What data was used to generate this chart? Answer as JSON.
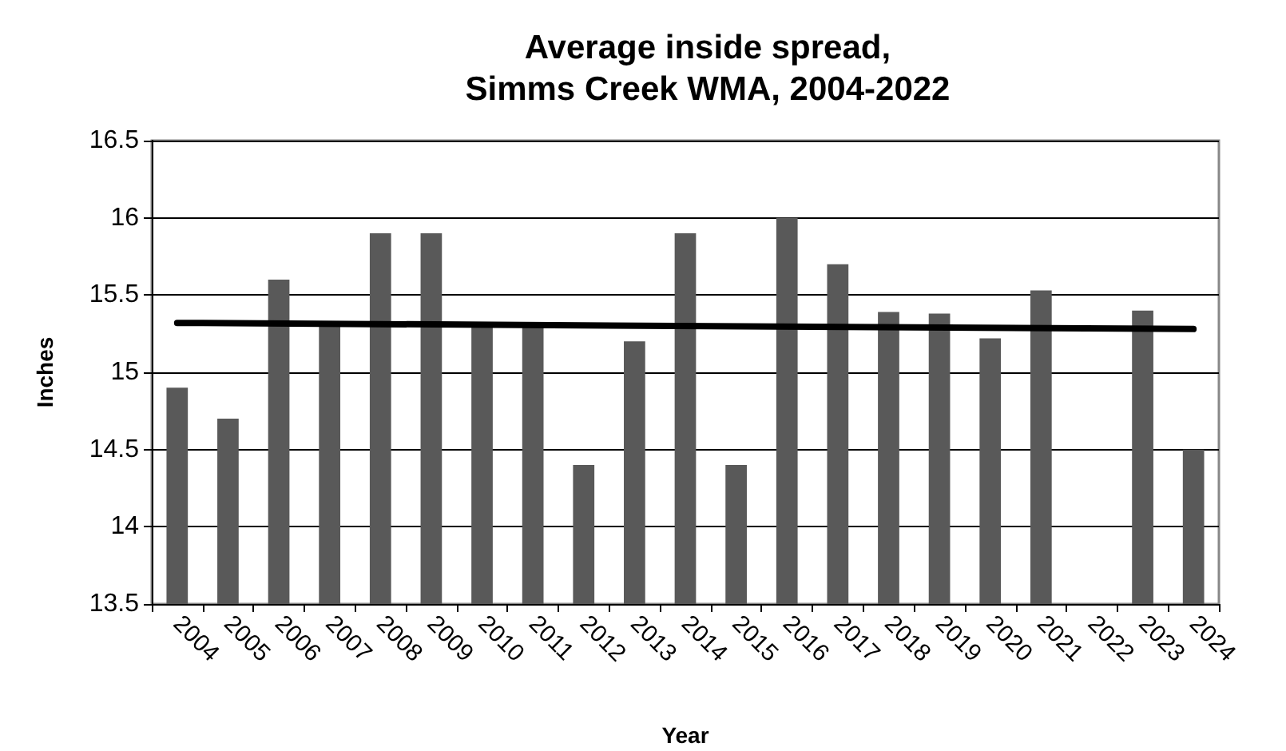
{
  "chart_data": {
    "type": "bar",
    "title": "Average inside spread,\nSimms Creek WMA, 2004-2022",
    "xlabel": "Year",
    "ylabel": "Inches",
    "categories": [
      "2004",
      "2005",
      "2006",
      "2007",
      "2008",
      "2009",
      "2010",
      "2011",
      "2012",
      "2013",
      "2014",
      "2015",
      "2016",
      "2017",
      "2018",
      "2019",
      "2020",
      "2021",
      "2022",
      "2023",
      "2024"
    ],
    "series": [
      {
        "color": "#595959",
        "values": [
          14.9,
          14.7,
          15.6,
          15.3,
          15.9,
          15.9,
          15.3,
          15.3,
          14.4,
          15.2,
          15.9,
          14.4,
          16.0,
          15.7,
          15.39,
          15.38,
          15.22,
          15.53,
          null,
          15.4,
          14.5
        ]
      },
      {
        "type": "line",
        "color": "#000000",
        "values": [
          15.32,
          null,
          null,
          null,
          null,
          null,
          null,
          null,
          null,
          null,
          null,
          null,
          null,
          null,
          null,
          null,
          null,
          null,
          null,
          null,
          15.28
        ]
      }
    ],
    "ylim": [
      13.5,
      16.5
    ],
    "yticks": [
      13.5,
      14,
      14.5,
      15,
      15.5,
      16,
      16.5
    ],
    "grid": "y",
    "marker": "none",
    "line_style": "solid"
  }
}
